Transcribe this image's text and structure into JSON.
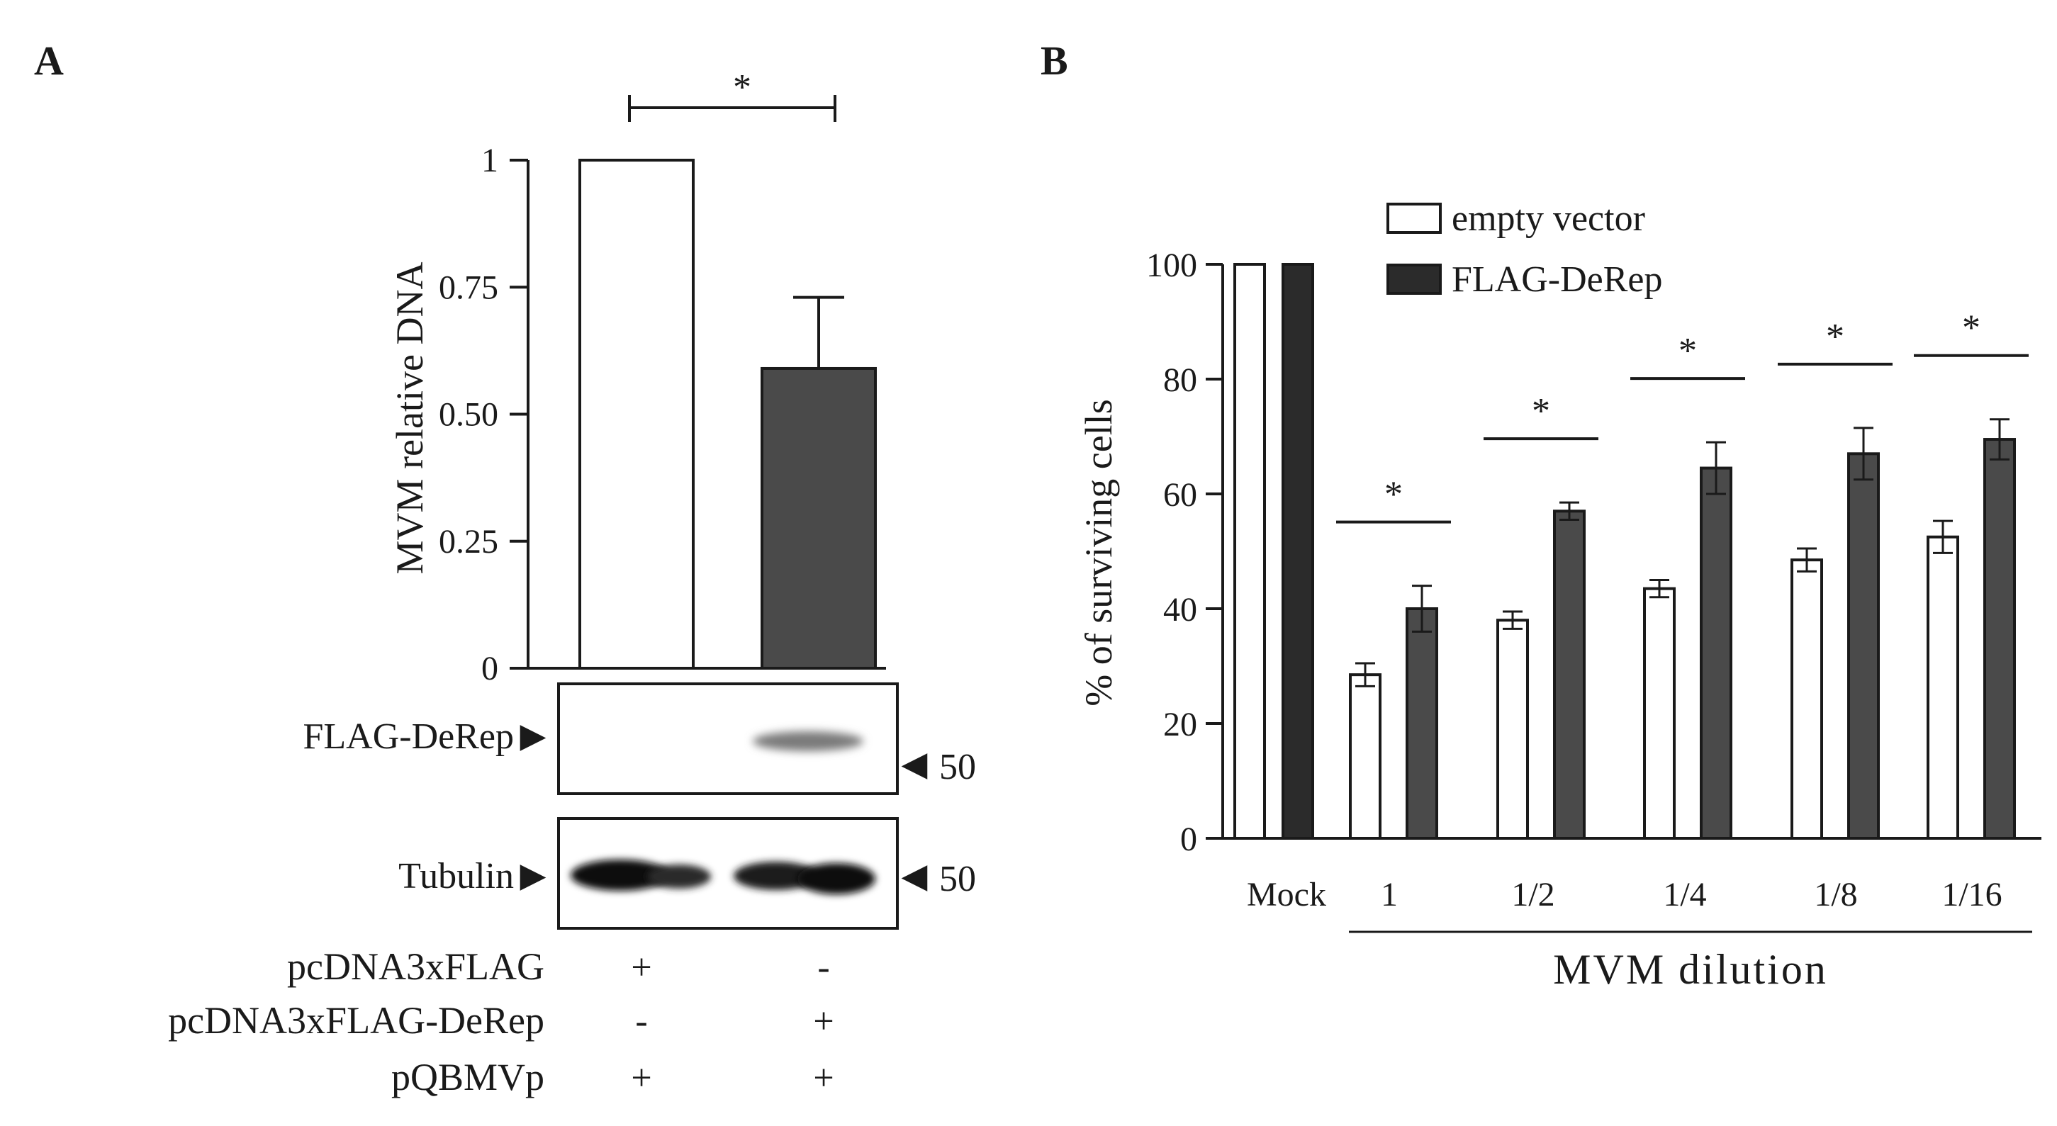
{
  "colors": {
    "empty": "#ffffff",
    "derep": "#4a4a4a",
    "mock_derep": "#2b2b2b",
    "ink": "#1a1a1a",
    "blot_bg": "#ffffff"
  },
  "panelA": {
    "label": "A",
    "significance": "*",
    "blots": [
      {
        "label": "FLAG-DeRep",
        "marker": "50",
        "marker_glyph": "◀",
        "pointer_glyph": "▶"
      },
      {
        "label": "Tubulin",
        "marker": "50",
        "marker_glyph": "◀",
        "pointer_glyph": "▶"
      }
    ],
    "conditions": [
      {
        "name": "pcDNA3xFLAG",
        "signs": [
          "+",
          "-"
        ]
      },
      {
        "name": "pcDNA3xFLAG-DeRep",
        "signs": [
          "-",
          "+"
        ]
      },
      {
        "name": "pQBMVp",
        "signs": [
          "+",
          "+"
        ]
      }
    ]
  },
  "panelB": {
    "label": "B",
    "xlabel": "MVM dilution",
    "legend": [
      {
        "name": "empty vector",
        "color": "#ffffff"
      },
      {
        "name": "FLAG-DeRep",
        "color": "#2b2b2b"
      }
    ]
  },
  "chart_data": [
    {
      "type": "bar",
      "title": "",
      "ylabel": "MVM relative DNA",
      "xlabel": "",
      "ylim": [
        0,
        1
      ],
      "yticks": [
        "0",
        "0.25",
        "0.50",
        "0.75",
        "1"
      ],
      "ytick_values": [
        0,
        0.25,
        0.5,
        0.75,
        1
      ],
      "categories": [
        "pcDNA3xFLAG",
        "pcDNA3xFLAG-DeRep"
      ],
      "values": [
        1.0,
        0.59
      ],
      "errors": [
        0,
        0.14
      ],
      "significance": [
        {
          "between": [
            0,
            1
          ],
          "label": "*"
        }
      ]
    },
    {
      "type": "bar",
      "title": "",
      "ylabel": "% of surviving cells",
      "xlabel": "MVM dilution",
      "ylim": [
        0,
        100
      ],
      "yticks": [
        "0",
        "20",
        "40",
        "60",
        "80",
        "100"
      ],
      "ytick_values": [
        0,
        20,
        40,
        60,
        80,
        100
      ],
      "categories": [
        "Mock",
        "1",
        "1/2",
        "1/4",
        "1/8",
        "1/16"
      ],
      "series": [
        {
          "name": "empty vector",
          "values": [
            100,
            28.5,
            38,
            43.5,
            48.5,
            52.5
          ],
          "errors": [
            0,
            2,
            1.5,
            1.5,
            2,
            2.8
          ]
        },
        {
          "name": "FLAG-DeRep",
          "values": [
            100,
            40,
            57,
            64.5,
            67,
            69.5
          ],
          "errors": [
            0,
            4,
            1.5,
            4.5,
            4.5,
            3.5
          ]
        }
      ],
      "significance": [
        {
          "category": "1",
          "label": "*"
        },
        {
          "category": "1/2",
          "label": "*"
        },
        {
          "category": "1/4",
          "label": "*"
        },
        {
          "category": "1/8",
          "label": "*"
        },
        {
          "category": "1/16",
          "label": "*"
        }
      ]
    }
  ]
}
